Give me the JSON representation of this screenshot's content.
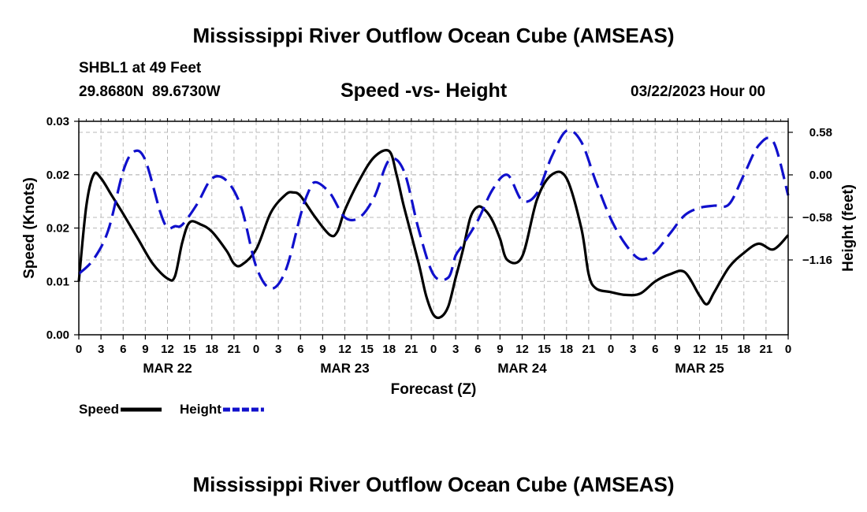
{
  "page": {
    "title": "Mississippi River Outflow Ocean Cube (AMSEAS)",
    "station": "SHBL1 at 49 Feet",
    "coords": "29.8680N  89.6730W",
    "subtitle": "Speed -vs- Height",
    "date": "03/22/2023 Hour 00",
    "footer_title": "Mississippi River Outflow Ocean Cube (AMSEAS)"
  },
  "chart_data": {
    "type": "line",
    "title": "Speed -vs- Height",
    "xlabel": "Forecast (Z)",
    "ylabel_left": "Speed (Knots)",
    "ylabel_right": "Height (feet)",
    "x_range_hours": [
      0,
      96
    ],
    "y_left_range": [
      0,
      0.03
    ],
    "y_left_ticks": [
      0,
      0.0075,
      0.015,
      0.0225,
      0.03
    ],
    "y_left_tick_labels": [
      "0.00",
      "0.01",
      "0.02",
      "0.02",
      "0.03"
    ],
    "y_right_range": [
      -2.18,
      0.73
    ],
    "y_right_ticks": [
      0.58,
      0.0,
      -0.58,
      -1.16
    ],
    "y_right_tick_labels": [
      "0.58",
      "0.00",
      "−0.58",
      "−1.16"
    ],
    "x_ticks_hours": [
      0,
      3,
      6,
      9,
      12,
      15,
      18,
      21,
      24,
      27,
      30,
      33,
      36,
      39,
      42,
      45,
      48,
      51,
      54,
      57,
      60,
      63,
      66,
      69,
      72,
      75,
      78,
      81,
      84,
      87,
      90,
      93,
      96
    ],
    "x_tick_labels": [
      "0",
      "3",
      "6",
      "9",
      "12",
      "15",
      "18",
      "21",
      "0",
      "3",
      "6",
      "9",
      "12",
      "15",
      "18",
      "21",
      "0",
      "3",
      "6",
      "9",
      "12",
      "15",
      "18",
      "21",
      "0",
      "3",
      "6",
      "9",
      "12",
      "15",
      "18",
      "21",
      "0"
    ],
    "day_labels": [
      {
        "label": "MAR 22",
        "hour": 12
      },
      {
        "label": "MAR 23",
        "hour": 36
      },
      {
        "label": "MAR 24",
        "hour": 60
      },
      {
        "label": "MAR 25",
        "hour": 84
      }
    ],
    "legend": [
      {
        "name": "Speed",
        "color": "#000000",
        "dash": "solid"
      },
      {
        "name": "Height",
        "color": "#1010cc",
        "dash": "dashed"
      }
    ],
    "series": [
      {
        "name": "Speed",
        "axis": "left",
        "color": "#000000",
        "x": [
          0,
          1,
          2,
          3,
          4.5,
          6,
          8,
          10,
          12,
          13,
          14,
          15,
          16.5,
          18,
          20,
          21,
          22,
          24,
          26,
          28,
          29,
          30,
          32,
          34,
          35,
          36,
          38,
          40,
          42,
          43,
          44,
          46,
          47,
          48,
          49,
          50,
          51,
          52,
          53,
          54,
          55,
          56,
          57,
          58,
          60,
          62,
          64,
          66,
          68,
          69,
          70,
          72,
          74,
          76,
          78,
          80,
          82,
          84,
          85,
          86,
          88,
          90,
          92,
          94,
          96
        ],
        "y": [
          0.0075,
          0.018,
          0.0225,
          0.022,
          0.0195,
          0.017,
          0.0135,
          0.01,
          0.0079,
          0.0082,
          0.013,
          0.0158,
          0.0155,
          0.0145,
          0.0118,
          0.01,
          0.0098,
          0.012,
          0.0172,
          0.0197,
          0.02,
          0.0195,
          0.0165,
          0.014,
          0.0145,
          0.0175,
          0.0218,
          0.025,
          0.0258,
          0.0225,
          0.018,
          0.01,
          0.0055,
          0.0028,
          0.0025,
          0.004,
          0.008,
          0.012,
          0.0165,
          0.018,
          0.0175,
          0.016,
          0.0135,
          0.0105,
          0.011,
          0.019,
          0.0225,
          0.022,
          0.015,
          0.0085,
          0.0065,
          0.006,
          0.0056,
          0.0058,
          0.0075,
          0.0085,
          0.0088,
          0.0055,
          0.0043,
          0.006,
          0.0095,
          0.0115,
          0.0128,
          0.012,
          0.014
        ],
        "comment": "speed values in knots on the left axis (0-0.03)"
      },
      {
        "name": "Height",
        "axis": "right",
        "color": "#1010cc",
        "x": [
          0,
          2,
          4,
          6,
          7.5,
          9,
          11,
          12,
          13,
          14,
          16,
          18,
          20,
          22,
          24,
          26,
          28,
          30,
          31,
          32,
          34,
          36,
          38,
          40,
          42,
          44,
          46,
          48,
          50,
          51,
          52,
          54,
          56,
          58,
          60,
          62,
          64,
          66,
          68,
          70,
          72,
          74,
          76,
          78,
          80,
          82,
          84,
          86,
          88,
          90,
          92,
          94,
          96
        ],
        "y": [
          -1.35,
          -1.15,
          -0.75,
          0.05,
          0.32,
          0.2,
          -0.5,
          -0.72,
          -0.7,
          -0.68,
          -0.4,
          -0.05,
          -0.08,
          -0.45,
          -1.25,
          -1.55,
          -1.3,
          -0.55,
          -0.25,
          -0.1,
          -0.25,
          -0.58,
          -0.58,
          -0.3,
          0.2,
          0.05,
          -0.75,
          -1.36,
          -1.4,
          -1.1,
          -0.95,
          -0.62,
          -0.2,
          0.0,
          -0.35,
          -0.25,
          0.25,
          0.6,
          0.45,
          -0.1,
          -0.6,
          -0.95,
          -1.15,
          -1.05,
          -0.8,
          -0.55,
          -0.45,
          -0.42,
          -0.4,
          0.0,
          0.4,
          0.45,
          -0.28
        ],
        "comment": "water height in feet on the right axis"
      }
    ]
  }
}
